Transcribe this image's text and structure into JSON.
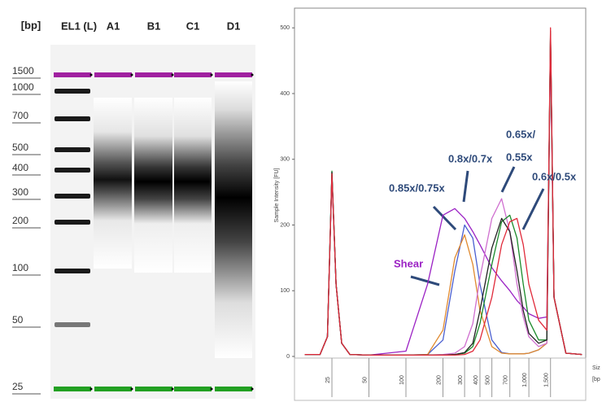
{
  "gel": {
    "unit_label": "[bp]",
    "lanes": [
      "EL1 (L)",
      "A1",
      "B1",
      "C1",
      "D1"
    ],
    "ladder": [
      "1500",
      "1000",
      "700",
      "500",
      "400",
      "300",
      "200",
      "100",
      "50",
      "25"
    ]
  },
  "chart_data": {
    "type": "line",
    "y_label": "Sample Intensity [FU]",
    "x_label": "Siz",
    "x_unit": "[bp",
    "xscale": "log",
    "xlim": [
      12.4,
      2900
    ],
    "ylim": [
      0,
      530
    ],
    "xticks": [
      25,
      50,
      100,
      200,
      300,
      400,
      500,
      700,
      {
        "value": 1000,
        "label": "1,000"
      },
      {
        "value": 1500,
        "label": "1,500"
      }
    ],
    "yticks": [
      0,
      100,
      200,
      300,
      400,
      500
    ],
    "annotations": [
      "0.85x/0.75x",
      "0.8x/0.7x",
      "0.65x/",
      "0.55x",
      "0.6x/0.5x",
      "Shear"
    ],
    "x": [
      15,
      20,
      23,
      25,
      27,
      30,
      35,
      50,
      100,
      150,
      200,
      250,
      300,
      350,
      400,
      500,
      600,
      700,
      800,
      900,
      1000,
      1200,
      1400,
      1500,
      1600,
      2000,
      2700
    ],
    "series": [
      {
        "color": "#9b22c4",
        "values": [
          3,
          3,
          30,
          275,
          110,
          20,
          3,
          2,
          8,
          110,
          215,
          225,
          210,
          190,
          170,
          135,
          115,
          100,
          85,
          75,
          65,
          58,
          60,
          470,
          90,
          5,
          3
        ]
      },
      {
        "color": "#4a5fd0",
        "values": [
          3,
          3,
          30,
          280,
          110,
          20,
          3,
          2,
          2,
          3,
          25,
          130,
          200,
          180,
          110,
          25,
          6,
          4,
          4,
          4,
          5,
          10,
          20,
          490,
          90,
          5,
          3
        ]
      },
      {
        "color": "#e08a30",
        "values": [
          3,
          3,
          30,
          278,
          110,
          20,
          3,
          2,
          2,
          3,
          40,
          150,
          185,
          140,
          70,
          15,
          5,
          4,
          4,
          4,
          5,
          10,
          20,
          485,
          90,
          5,
          3
        ]
      },
      {
        "color": "#d070d0",
        "values": [
          3,
          3,
          30,
          275,
          110,
          20,
          3,
          2,
          2,
          2,
          3,
          5,
          15,
          50,
          120,
          210,
          240,
          190,
          110,
          60,
          30,
          15,
          20,
          480,
          90,
          5,
          3
        ]
      },
      {
        "color": "#1a8a2a",
        "values": [
          3,
          3,
          30,
          282,
          110,
          20,
          3,
          2,
          2,
          2,
          2,
          3,
          5,
          15,
          50,
          140,
          205,
          215,
          180,
          110,
          55,
          25,
          25,
          495,
          90,
          5,
          3
        ]
      },
      {
        "color": "#222222",
        "values": [
          3,
          3,
          30,
          280,
          110,
          20,
          3,
          2,
          2,
          2,
          2,
          3,
          6,
          20,
          70,
          165,
          210,
          190,
          130,
          70,
          35,
          20,
          25,
          490,
          90,
          5,
          3
        ]
      },
      {
        "color": "#e02a3a",
        "values": [
          3,
          3,
          30,
          278,
          110,
          20,
          3,
          2,
          2,
          2,
          2,
          2,
          3,
          8,
          25,
          90,
          170,
          205,
          210,
          170,
          110,
          55,
          40,
          500,
          90,
          5,
          3
        ]
      }
    ]
  }
}
